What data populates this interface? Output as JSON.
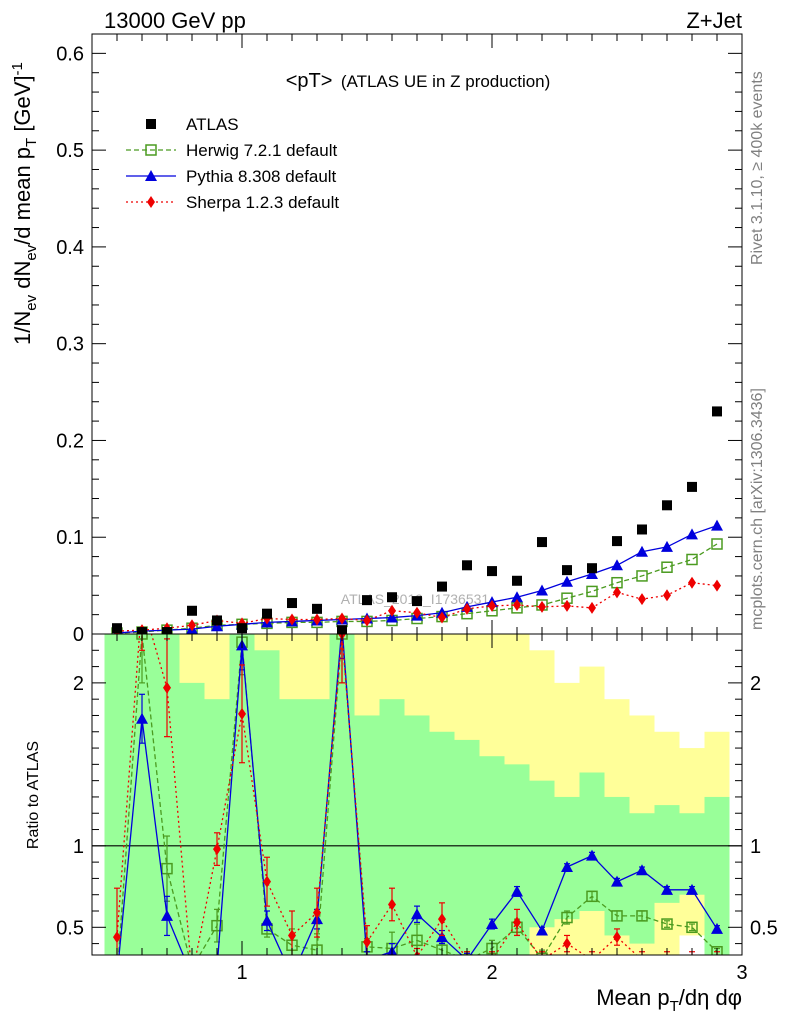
{
  "header": {
    "left": "13000 GeV pp",
    "right": "Z+Jet"
  },
  "side_labels": {
    "rivet": "Rivet 3.1.10, ≥ 400k events",
    "mcplots": "mcplots.cern.ch [arXiv:1306.3436]"
  },
  "watermark": "ATLAS_2019_I1736531",
  "chart_data": [
    {
      "type": "scatter",
      "title": "<pT> (ATLAS UE in Z production)",
      "title_main": "<pT>",
      "title_sub": "(ATLAS UE in Z production)",
      "ylabel": "1/N_ev dN_ev/d mean p_T [GeV]^-1",
      "ylabel_parts": {
        "a": "1/N",
        "a_sub": "ev",
        "b": " dN",
        "b_sub": "ev",
        "c": "/d mean p",
        "c_sub": "T",
        "d": " [GeV]",
        "d_sup": "-1"
      },
      "xlim": [
        0.4,
        3.0
      ],
      "ylim": [
        0,
        0.62
      ],
      "yticks": [
        0,
        0.1,
        0.2,
        0.3,
        0.4,
        0.5,
        0.6
      ],
      "ytick_labels": [
        "0",
        "0.1",
        "0.2",
        "0.3",
        "0.4",
        "0.5",
        "0.6"
      ],
      "legend_position": "top-left",
      "x": [
        0.5,
        0.6,
        0.7,
        0.8,
        0.9,
        1.0,
        1.1,
        1.2,
        1.3,
        1.4,
        1.5,
        1.6,
        1.7,
        1.8,
        1.9,
        2.0,
        2.1,
        2.2,
        2.3,
        2.4,
        2.5,
        2.6,
        2.7,
        2.8,
        2.9
      ],
      "series": [
        {
          "name": "ATLAS",
          "color": "#000000",
          "marker": "square-filled",
          "line": "none",
          "values": [
            0.006,
            0.002,
            0.002,
            0.024,
            0.014,
            0.006,
            0.021,
            0.032,
            0.026,
            0.004,
            0.035,
            0.038,
            0.034,
            0.049,
            0.071,
            0.065,
            0.055,
            0.095,
            0.066,
            0.068,
            0.096,
            0.108,
            0.133,
            0.152,
            0.23
          ]
        },
        {
          "name": "Herwig 7.2.1 default",
          "color": "#4b9b20",
          "marker": "square-open",
          "line": "dashed",
          "values": [
            0.001,
            0.002,
            0.004,
            0.006,
            0.009,
            0.01,
            0.011,
            0.012,
            0.012,
            0.013,
            0.013,
            0.014,
            0.016,
            0.018,
            0.021,
            0.024,
            0.027,
            0.03,
            0.037,
            0.044,
            0.053,
            0.06,
            0.069,
            0.077,
            0.093
          ]
        },
        {
          "name": "Pythia 8.308 default",
          "color": "#0000dd",
          "marker": "triangle-filled",
          "line": "solid",
          "values": [
            0.001,
            0.003,
            0.004,
            0.005,
            0.008,
            0.01,
            0.012,
            0.013,
            0.014,
            0.015,
            0.016,
            0.017,
            0.019,
            0.022,
            0.028,
            0.033,
            0.038,
            0.045,
            0.054,
            0.062,
            0.071,
            0.085,
            0.09,
            0.103,
            0.112
          ]
        },
        {
          "name": "Sherpa 1.2.3 default",
          "color": "#ee0000",
          "marker": "diamond-filled",
          "line": "dotted",
          "values": [
            0.003,
            0.004,
            0.006,
            0.009,
            0.014,
            0.011,
            0.016,
            0.015,
            0.015,
            0.016,
            0.014,
            0.024,
            0.022,
            0.017,
            0.026,
            0.029,
            0.03,
            0.028,
            0.029,
            0.027,
            0.043,
            0.036,
            0.04,
            0.053,
            0.05
          ]
        }
      ]
    },
    {
      "type": "line",
      "ylabel": "Ratio to ATLAS",
      "xlabel": "Mean p_T/dη dφ",
      "xlabel_parts": {
        "a": "Mean p",
        "a_sub": "T",
        "b": "/dη dφ"
      },
      "xlim": [
        0.4,
        3.0
      ],
      "ylim": [
        0.33,
        2.3
      ],
      "xticks": [
        1,
        2,
        3
      ],
      "xtick_labels": [
        "1",
        "2",
        "3"
      ],
      "yticks": [
        0.5,
        1,
        2
      ],
      "ytick_labels": [
        "0.5",
        "1",
        "2"
      ],
      "reference_line": 1,
      "x": [
        0.5,
        0.6,
        0.7,
        0.8,
        0.9,
        1.0,
        1.1,
        1.2,
        1.3,
        1.4,
        1.5,
        1.6,
        1.7,
        1.8,
        1.9,
        2.0,
        2.1,
        2.2,
        2.3,
        2.4,
        2.5,
        2.6,
        2.7,
        2.8,
        2.9
      ],
      "bands": {
        "stat_color": "#99ff99",
        "total_color": "#ffff99",
        "stat_low": [
          0.33,
          0.33,
          0.33,
          0.33,
          0.33,
          0.33,
          0.33,
          0.33,
          0.33,
          0.33,
          0.33,
          0.33,
          0.33,
          0.33,
          0.33,
          0.33,
          0.33,
          0.5,
          0.55,
          0.6,
          0.45,
          0.4,
          0.65,
          0.7,
          0.33
        ],
        "stat_high": [
          2.3,
          2.3,
          2.3,
          2.0,
          1.9,
          2.3,
          2.2,
          1.9,
          1.9,
          2.3,
          1.8,
          1.9,
          1.8,
          1.7,
          1.65,
          1.55,
          1.5,
          1.4,
          1.3,
          1.45,
          1.3,
          1.2,
          1.25,
          1.2,
          1.3
        ],
        "total_low": [
          0.33,
          0.33,
          0.33,
          0.33,
          0.33,
          0.33,
          0.33,
          0.33,
          0.33,
          0.33,
          0.33,
          0.33,
          0.33,
          0.33,
          0.33,
          0.33,
          0.33,
          0.33,
          0.33,
          0.33,
          0.33,
          0.33,
          0.33,
          0.45,
          0.33
        ],
        "total_high": [
          2.3,
          2.3,
          2.3,
          2.3,
          2.3,
          2.3,
          2.3,
          2.3,
          2.3,
          2.3,
          2.3,
          2.3,
          2.3,
          2.3,
          2.3,
          2.3,
          2.3,
          2.2,
          2.0,
          2.1,
          1.9,
          1.8,
          1.7,
          1.6,
          1.7
        ]
      },
      "series": [
        {
          "name": "Herwig 7.2.1 default",
          "color": "#4b9b20",
          "marker": "square-open",
          "line": "dashed",
          "values": [
            0.2,
            2.3,
            0.86,
            0.25,
            0.51,
            2.25,
            0.49,
            0.39,
            0.36,
            2.3,
            0.38,
            0.37,
            0.42,
            0.36,
            0.3,
            0.37,
            0.5,
            0.31,
            0.56,
            0.69,
            0.57,
            0.57,
            0.52,
            0.5,
            0.35
          ],
          "errors": [
            0.1,
            0.3,
            0.2,
            0.05,
            0.1,
            0.2,
            0.05,
            0.1,
            0.1,
            0.3,
            0.05,
            0.1,
            0.1,
            0.05,
            0.05,
            0.05,
            0.05,
            0.05,
            0.04,
            0.03,
            0.03,
            0.03,
            0.02,
            0.02,
            0.02
          ]
        },
        {
          "name": "Pythia 8.308 default",
          "color": "#0000dd",
          "marker": "triangle-filled",
          "line": "solid",
          "values": [
            0.2,
            1.78,
            0.57,
            0.2,
            0.25,
            2.23,
            0.54,
            0.2,
            0.55,
            2.35,
            0.3,
            0.35,
            0.58,
            0.44,
            0.3,
            0.52,
            0.72,
            0.48,
            0.87,
            0.94,
            0.78,
            0.85,
            0.73,
            0.73,
            0.49
          ],
          "errors": [
            0.1,
            0.15,
            0.12,
            0.05,
            0.05,
            0.15,
            0.06,
            0.05,
            0.06,
            0.2,
            0.05,
            0.05,
            0.05,
            0.04,
            0.04,
            0.03,
            0.03,
            0.02,
            0.02,
            0.02,
            0.02,
            0.02,
            0.02,
            0.02,
            0.02
          ]
        },
        {
          "name": "Sherpa 1.2.3 default",
          "color": "#ee0000",
          "marker": "diamond-filled",
          "line": "dotted",
          "values": [
            0.44,
            2.5,
            1.97,
            0.2,
            0.98,
            1.81,
            0.78,
            0.45,
            0.59,
            2.3,
            0.41,
            0.64,
            0.32,
            0.55,
            0.3,
            0.3,
            0.53,
            0.3,
            0.4,
            0.3,
            0.44,
            0.3,
            0.3,
            0.3,
            0.3
          ],
          "errors": [
            0.3,
            0.3,
            0.3,
            0.1,
            0.1,
            0.3,
            0.15,
            0.15,
            0.15,
            0.3,
            0.1,
            0.1,
            0.05,
            0.1,
            0.05,
            0.05,
            0.08,
            0.05,
            0.05,
            0.05,
            0.05,
            0.05,
            0.05,
            0.05,
            0.05
          ]
        }
      ]
    }
  ]
}
